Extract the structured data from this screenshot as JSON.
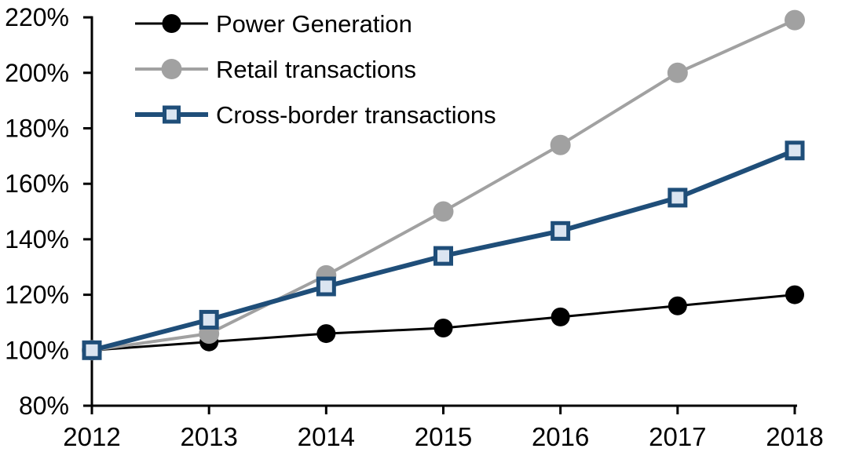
{
  "chart_data": {
    "type": "line",
    "title": "",
    "xlabel": "",
    "ylabel": "",
    "background_color": "#ffffff",
    "axis_color": "#000000",
    "grid": false,
    "legend_position": "top-left",
    "x_labels": [
      "2012",
      "2013",
      "2014",
      "2015",
      "2016",
      "2017",
      "2018"
    ],
    "y_tick_labels": [
      "80%",
      "100%",
      "120%",
      "140%",
      "160%",
      "180%",
      "200%",
      "220%"
    ],
    "ylim": [
      80,
      220
    ],
    "y_step": 20,
    "series": [
      {
        "name": "Power Generation",
        "values": [
          100,
          103,
          106,
          108,
          112,
          116,
          120
        ],
        "color": "#000000",
        "line_width": 3,
        "marker": "circle",
        "marker_fill": "#000000",
        "marker_size": 12
      },
      {
        "name": "Retail transactions",
        "values": [
          100,
          106,
          127,
          150,
          174,
          200,
          219
        ],
        "color": "#a1a1a1",
        "line_width": 4,
        "marker": "circle",
        "marker_fill": "#a1a1a1",
        "marker_size": 13
      },
      {
        "name": "Cross-border transactions",
        "values": [
          100,
          111,
          123,
          134,
          143,
          155,
          172
        ],
        "color": "#1f4e79",
        "line_width": 6,
        "marker": "square",
        "marker_fill": "#dbe5f1",
        "marker_size": 10,
        "marker_stroke_width": 5
      }
    ]
  }
}
